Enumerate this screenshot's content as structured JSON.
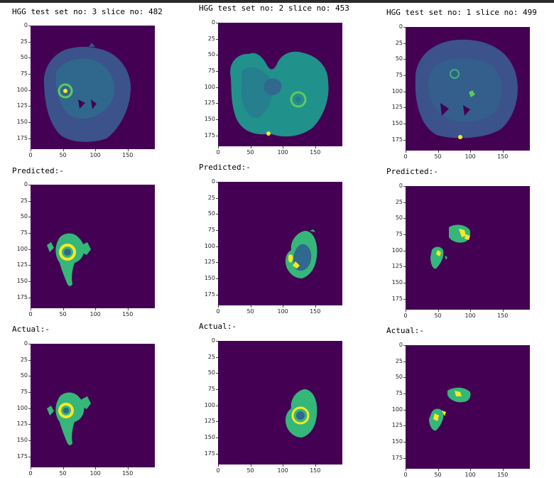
{
  "colors": {
    "background": "#440154",
    "brain_low": "#3b528b",
    "brain_mid": "#21918c",
    "lesion_edema": "#35b779",
    "lesion_core": "#31688e",
    "lesion_enhancing": "#fde725"
  },
  "axes": {
    "x_ticks": [
      "0",
      "50",
      "100",
      "150"
    ],
    "y_ticks": [
      "0",
      "25",
      "50",
      "75",
      "100",
      "125",
      "150",
      "175"
    ]
  },
  "columns": [
    {
      "title": "HGG test set no: 3 slice no: 482",
      "predicted_label": "Predicted:-",
      "actual_label": "Actual:-"
    },
    {
      "title": "HGG test set no: 2 slice no: 453",
      "predicted_label": "Predicted:-",
      "actual_label": "Actual:-"
    },
    {
      "title": "HGG test set no: 1 slice no: 499",
      "predicted_label": "Predicted:-",
      "actual_label": "Actual:-"
    }
  ]
}
